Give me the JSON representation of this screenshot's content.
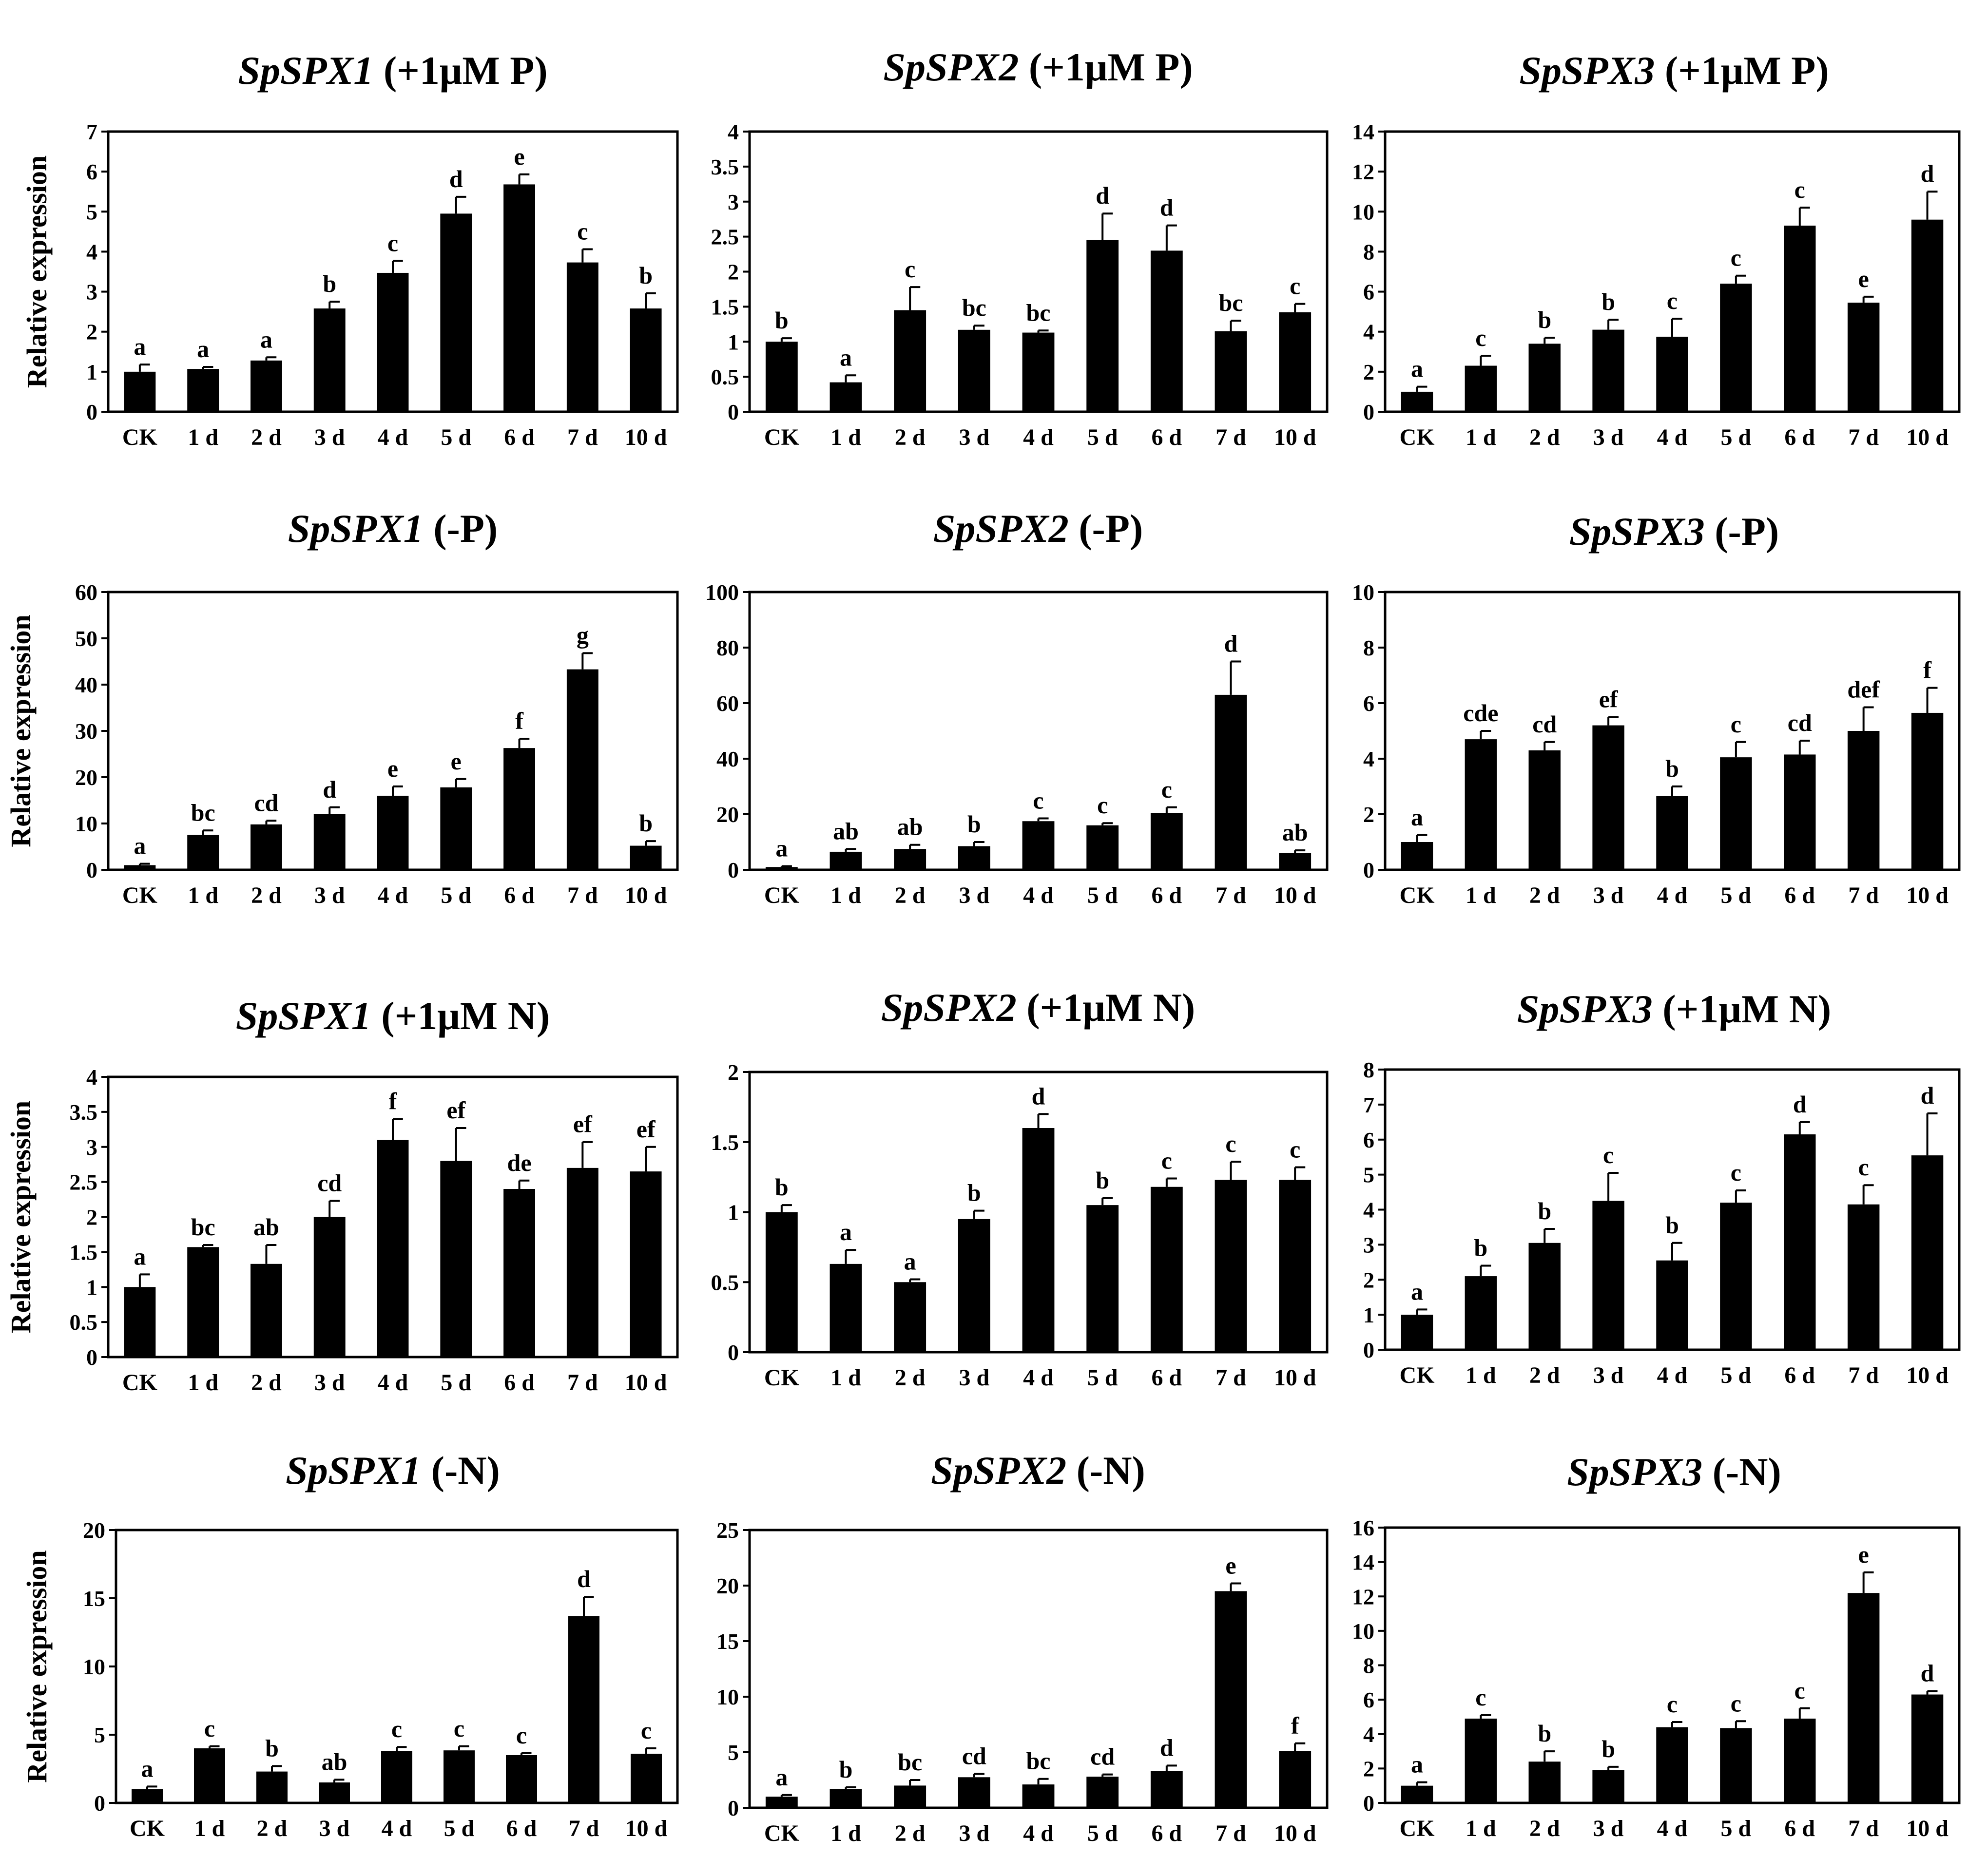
{
  "chart_data": [
    {
      "type": "bar",
      "title": {
        "gene": "SpSPX1",
        "condition": " (+1μM P)"
      },
      "ylabel": "Relative expression",
      "categories": [
        "CK",
        "1 d",
        "2 d",
        "3 d",
        "4 d",
        "5 d",
        "6 d",
        "7 d",
        "10 d"
      ],
      "values": [
        1.0,
        1.07,
        1.28,
        2.58,
        3.47,
        4.95,
        5.68,
        3.73,
        2.58
      ],
      "errors": [
        0.18,
        0.05,
        0.08,
        0.17,
        0.3,
        0.42,
        0.25,
        0.33,
        0.38
      ],
      "letters": [
        "a",
        "a",
        "a",
        "b",
        "c",
        "d",
        "e",
        "c",
        "b"
      ],
      "ylim": [
        0,
        7
      ],
      "yticks": [
        "0",
        "1",
        "2",
        "3",
        "4",
        "5",
        "6",
        "7"
      ]
    },
    {
      "type": "bar",
      "title": {
        "gene": "SpSPX2",
        "condition": " (+1μM P)"
      },
      "ylabel": "",
      "categories": [
        "CK",
        "1 d",
        "2 d",
        "3 d",
        "4 d",
        "5 d",
        "6 d",
        "7 d",
        "10 d"
      ],
      "values": [
        1.0,
        0.42,
        1.45,
        1.17,
        1.13,
        2.45,
        2.3,
        1.15,
        1.42
      ],
      "errors": [
        0.05,
        0.1,
        0.33,
        0.06,
        0.03,
        0.38,
        0.36,
        0.15,
        0.12
      ],
      "letters": [
        "b",
        "a",
        "c",
        "bc",
        "bc",
        "d",
        "d",
        "bc",
        "c"
      ],
      "ylim": [
        0,
        4
      ],
      "yticks": [
        "0",
        "0.5",
        "1",
        "1.5",
        "2",
        "2.5",
        "3",
        "3.5",
        "4"
      ]
    },
    {
      "type": "bar",
      "title": {
        "gene": "SpSPX3",
        "condition": " (+1μM P)"
      },
      "ylabel": "",
      "categories": [
        "CK",
        "1 d",
        "2 d",
        "3 d",
        "4 d",
        "5 d",
        "6 d",
        "7 d",
        "10 d"
      ],
      "values": [
        1.0,
        2.3,
        3.4,
        4.1,
        3.75,
        6.4,
        9.3,
        5.45,
        9.6
      ],
      "errors": [
        0.25,
        0.5,
        0.3,
        0.5,
        0.9,
        0.4,
        0.9,
        0.3,
        1.4
      ],
      "letters": [
        "a",
        "c",
        "b",
        "b",
        "c",
        "c",
        "c",
        "e",
        "d"
      ],
      "ylim": [
        0,
        14
      ],
      "yticks": [
        "0",
        "2",
        "4",
        "6",
        "8",
        "10",
        "12",
        "14"
      ]
    },
    {
      "type": "bar",
      "title": {
        "gene": "SpSPX1",
        "condition": " (-P)"
      },
      "ylabel": "Relative expression",
      "categories": [
        "CK",
        "1 d",
        "2 d",
        "3 d",
        "4 d",
        "5 d",
        "6 d",
        "7 d",
        "10 d"
      ],
      "values": [
        1.0,
        7.5,
        9.8,
        12.0,
        16.0,
        17.8,
        26.3,
        43.3,
        5.2
      ],
      "errors": [
        0.3,
        1.0,
        0.8,
        1.5,
        2.0,
        1.8,
        2.0,
        3.5,
        1.0
      ],
      "letters": [
        "a",
        "bc",
        "cd",
        "d",
        "e",
        "e",
        "f",
        "g",
        "b"
      ],
      "ylim": [
        0,
        60
      ],
      "yticks": [
        "0",
        "10",
        "20",
        "30",
        "40",
        "50",
        "60"
      ]
    },
    {
      "type": "bar",
      "title": {
        "gene": "SpSPX2",
        "condition": " (-P)"
      },
      "ylabel": "",
      "categories": [
        "CK",
        "1 d",
        "2 d",
        "3 d",
        "4 d",
        "5 d",
        "6 d",
        "7 d",
        "10 d"
      ],
      "values": [
        1.0,
        6.5,
        7.5,
        8.5,
        17.5,
        16.0,
        20.5,
        63.0,
        6.0
      ],
      "errors": [
        0.3,
        1.0,
        1.5,
        1.5,
        1.0,
        0.8,
        2.0,
        12.0,
        1.0
      ],
      "letters": [
        "a",
        "ab",
        "ab",
        "b",
        "c",
        "c",
        "c",
        "d",
        "ab"
      ],
      "ylim": [
        0,
        100
      ],
      "yticks": [
        "0",
        "20",
        "40",
        "60",
        "80",
        "100"
      ]
    },
    {
      "type": "bar",
      "title": {
        "gene": "SpSPX3",
        "condition": " (-P)"
      },
      "ylabel": "",
      "categories": [
        "CK",
        "1 d",
        "2 d",
        "3 d",
        "4 d",
        "5 d",
        "6 d",
        "7 d",
        "10 d"
      ],
      "values": [
        1.0,
        4.7,
        4.3,
        5.2,
        2.65,
        4.05,
        4.15,
        5.0,
        5.65
      ],
      "errors": [
        0.25,
        0.3,
        0.3,
        0.3,
        0.35,
        0.55,
        0.5,
        0.85,
        0.9
      ],
      "letters": [
        "a",
        "cde",
        "cd",
        "ef",
        "b",
        "c",
        "cd",
        "def",
        "f"
      ],
      "ylim": [
        0,
        10
      ],
      "yticks": [
        "0",
        "2",
        "4",
        "6",
        "8",
        "10"
      ]
    },
    {
      "type": "bar",
      "title": {
        "gene": "SpSPX1",
        "condition": " (+1μM N)"
      },
      "ylabel": "Relative expression",
      "categories": [
        "CK",
        "1 d",
        "2 d",
        "3 d",
        "4 d",
        "5 d",
        "6 d",
        "7 d",
        "10 d"
      ],
      "values": [
        1.0,
        1.57,
        1.33,
        2.0,
        3.1,
        2.8,
        2.4,
        2.7,
        2.65
      ],
      "errors": [
        0.18,
        0.03,
        0.27,
        0.23,
        0.3,
        0.47,
        0.12,
        0.37,
        0.35
      ],
      "letters": [
        "a",
        "bc",
        "ab",
        "cd",
        "f",
        "ef",
        "de",
        "ef",
        "ef"
      ],
      "ylim": [
        0,
        4
      ],
      "yticks": [
        "0",
        "0.5",
        "1",
        "1.5",
        "2",
        "2.5",
        "3",
        "3.5",
        "4"
      ]
    },
    {
      "type": "bar",
      "title": {
        "gene": "SpSPX2",
        "condition": " (+1μM N)"
      },
      "ylabel": "",
      "categories": [
        "CK",
        "1 d",
        "2 d",
        "3 d",
        "4 d",
        "5 d",
        "6 d",
        "7 d",
        "10 d"
      ],
      "values": [
        1.0,
        0.63,
        0.5,
        0.95,
        1.6,
        1.05,
        1.18,
        1.23,
        1.23
      ],
      "errors": [
        0.05,
        0.1,
        0.02,
        0.06,
        0.1,
        0.05,
        0.06,
        0.13,
        0.09
      ],
      "letters": [
        "b",
        "a",
        "a",
        "b",
        "d",
        "b",
        "c",
        "c",
        "c"
      ],
      "ylim": [
        0,
        2
      ],
      "yticks": [
        "0",
        "0.5",
        "1",
        "1.5",
        "2"
      ]
    },
    {
      "type": "bar",
      "title": {
        "gene": "SpSPX3",
        "condition": " (+1μM N)"
      },
      "ylabel": "",
      "categories": [
        "CK",
        "1 d",
        "2 d",
        "3 d",
        "4 d",
        "5 d",
        "6 d",
        "7 d",
        "10 d"
      ],
      "values": [
        1.0,
        2.1,
        3.05,
        4.25,
        2.55,
        4.2,
        6.15,
        4.15,
        5.55
      ],
      "errors": [
        0.15,
        0.3,
        0.4,
        0.8,
        0.5,
        0.35,
        0.35,
        0.55,
        1.2
      ],
      "letters": [
        "a",
        "b",
        "b",
        "c",
        "b",
        "c",
        "d",
        "c",
        "d"
      ],
      "ylim": [
        0,
        8
      ],
      "yticks": [
        "0",
        "1",
        "2",
        "3",
        "4",
        "5",
        "6",
        "7",
        "8"
      ]
    },
    {
      "type": "bar",
      "title": {
        "gene": "SpSPX1",
        "condition": " (-N)"
      },
      "ylabel": "Relative expression",
      "categories": [
        "CK",
        "1 d",
        "2 d",
        "3 d",
        "4 d",
        "5 d",
        "6 d",
        "7 d",
        "10 d"
      ],
      "values": [
        1.0,
        4.0,
        2.3,
        1.5,
        3.8,
        3.85,
        3.5,
        13.7,
        3.6
      ],
      "errors": [
        0.2,
        0.15,
        0.4,
        0.2,
        0.3,
        0.3,
        0.15,
        1.4,
        0.4
      ],
      "letters": [
        "a",
        "c",
        "b",
        "ab",
        "c",
        "c",
        "c",
        "d",
        "c"
      ],
      "ylim": [
        0,
        20
      ],
      "yticks": [
        "0",
        "5",
        "10",
        "15",
        "20"
      ]
    },
    {
      "type": "bar",
      "title": {
        "gene": "SpSPX2",
        "condition": " (-N)"
      },
      "ylabel": "",
      "categories": [
        "CK",
        "1 d",
        "2 d",
        "3 d",
        "4 d",
        "5 d",
        "6 d",
        "7 d",
        "10 d"
      ],
      "values": [
        1.0,
        1.7,
        2.0,
        2.75,
        2.1,
        2.8,
        3.3,
        19.5,
        5.1
      ],
      "errors": [
        0.15,
        0.15,
        0.5,
        0.3,
        0.5,
        0.2,
        0.5,
        0.7,
        0.7
      ],
      "letters": [
        "a",
        "b",
        "bc",
        "cd",
        "bc",
        "cd",
        "d",
        "e",
        "f"
      ],
      "ylim": [
        0,
        25
      ],
      "yticks": [
        "0",
        "5",
        "10",
        "15",
        "20",
        "25"
      ]
    },
    {
      "type": "bar",
      "title": {
        "gene": "SpSPX3",
        "condition": " (-N)"
      },
      "ylabel": "",
      "categories": [
        "CK",
        "1 d",
        "2 d",
        "3 d",
        "4 d",
        "5 d",
        "6 d",
        "7 d",
        "10 d"
      ],
      "values": [
        1.0,
        4.9,
        2.4,
        1.9,
        4.4,
        4.35,
        4.9,
        12.2,
        6.3
      ],
      "errors": [
        0.2,
        0.2,
        0.6,
        0.2,
        0.3,
        0.4,
        0.6,
        1.2,
        0.2
      ],
      "letters": [
        "a",
        "c",
        "b",
        "b",
        "c",
        "c",
        "c",
        "e",
        "d"
      ],
      "ylim": [
        0,
        16
      ],
      "yticks": [
        "0",
        "2",
        "4",
        "6",
        "8",
        "10",
        "12",
        "14",
        "16"
      ]
    }
  ]
}
